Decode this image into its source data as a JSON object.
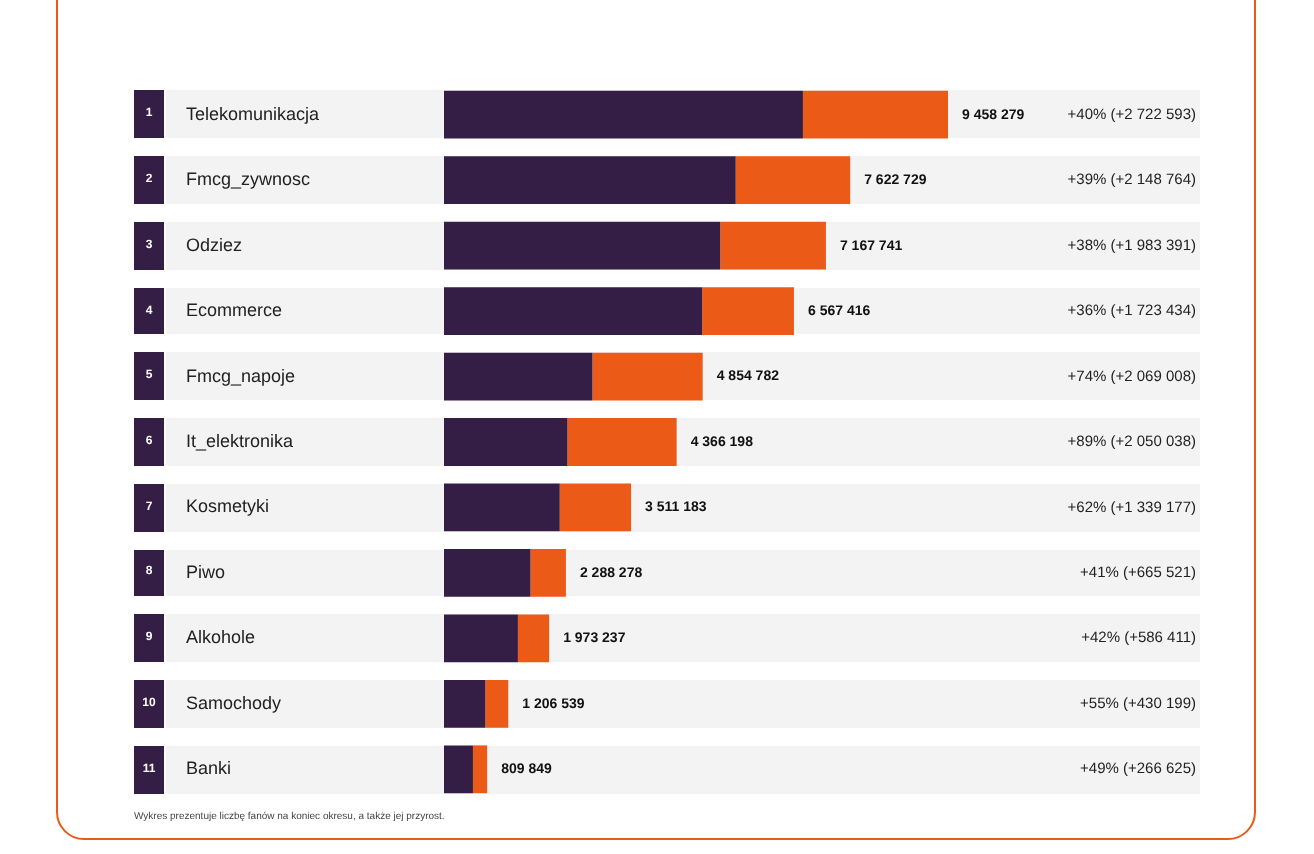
{
  "chart_data": {
    "type": "bar",
    "orientation": "horizontal",
    "stacked": true,
    "legend": false,
    "data_labels": false,
    "categories": [
      "Telekomunikacja",
      "Fmcg_zywnosc",
      "Odziez",
      "Ecommerce",
      "Fmcg_napoje",
      "It_elektronika",
      "Kosmetyki",
      "Piwo",
      "Alkohole",
      "Samochody",
      "Banki"
    ],
    "series": [
      {
        "color": "#341e45",
        "values": [
          6735686,
          5473965,
          5184350,
          4843982,
          2785774,
          2316160,
          2172006,
          1622757,
          1386826,
          776340,
          543224
        ]
      },
      {
        "color": "#ec5a17",
        "values": [
          2722593,
          2148764,
          1983391,
          1723434,
          2069008,
          2050038,
          1339177,
          665521,
          586411,
          430199,
          266625
        ],
        "value_labels": [
          "+40% (+2 722 593)",
          "+39% (+2 148 764)",
          "+38% (+1 983 391)",
          "+36% (+1 723 434)",
          "+74% (+2 069 008)",
          "+89% (+2 050 038)",
          "+62% (+1 339 177)",
          "+41% (+665 521)",
          "+42% (+586 411)",
          "+55% (+430 199)",
          "+49% (+266 625)"
        ]
      }
    ],
    "totals": [
      "9 458 279",
      "7 622 729",
      "7 167 741",
      "6 567 416",
      "4 854 782",
      "4 366 198",
      "3 511 183",
      "2 288 278",
      "1 973 237",
      "1 206 539",
      "809 849"
    ],
    "annotations": [
      "1",
      "2",
      "3",
      "4",
      "5",
      "6",
      "7",
      "8",
      "9",
      "10",
      "11",
      "Wykres prezentuje liczbę fanów na koniec okresu, a także jej przyrost."
    ]
  }
}
